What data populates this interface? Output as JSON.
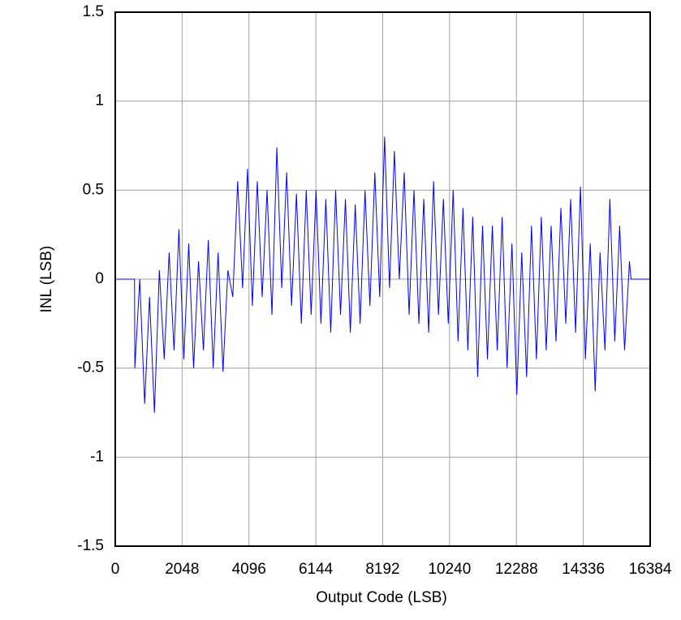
{
  "chart_data": {
    "type": "line",
    "xlabel": "Output Code (LSB)",
    "ylabel": "INL (LSB)",
    "xlim": [
      0,
      16384
    ],
    "xticks": [
      0,
      2048,
      4096,
      6144,
      8192,
      10240,
      12288,
      14336,
      16384
    ],
    "ylim": [
      -1.5,
      1.5
    ],
    "yticks": [
      -1.5,
      -1,
      -0.5,
      0,
      0.5,
      1,
      1.5
    ],
    "grid": true,
    "series": [
      {
        "color": "#0000ff",
        "x": [
          0,
          590,
          600,
          750,
          900,
          1050,
          1200,
          1350,
          1500,
          1650,
          1800,
          1950,
          2100,
          2250,
          2400,
          2550,
          2700,
          2850,
          3000,
          3150,
          3300,
          3450,
          3600,
          3750,
          3900,
          4050,
          4200,
          4350,
          4500,
          4650,
          4800,
          4950,
          5100,
          5250,
          5400,
          5550,
          5700,
          5850,
          6000,
          6150,
          6300,
          6450,
          6600,
          6750,
          6900,
          7050,
          7200,
          7350,
          7500,
          7650,
          7800,
          7950,
          8100,
          8250,
          8400,
          8550,
          8700,
          8850,
          9000,
          9150,
          9300,
          9450,
          9600,
          9750,
          9900,
          10050,
          10200,
          10350,
          10500,
          10650,
          10800,
          10950,
          11100,
          11250,
          11400,
          11550,
          11700,
          11850,
          12000,
          12150,
          12300,
          12450,
          12600,
          12750,
          12900,
          13050,
          13200,
          13350,
          13500,
          13650,
          13800,
          13950,
          14100,
          14250,
          14400,
          14550,
          14700,
          14850,
          15000,
          15150,
          15300,
          15450,
          15600,
          15750,
          15800,
          16384
        ],
        "values": [
          0,
          0,
          -0.5,
          0.0,
          -0.7,
          -0.1,
          -0.75,
          0.05,
          -0.45,
          0.15,
          -0.4,
          0.28,
          -0.45,
          0.2,
          -0.5,
          0.1,
          -0.4,
          0.22,
          -0.5,
          0.15,
          -0.52,
          0.05,
          -0.1,
          0.55,
          -0.05,
          0.62,
          -0.15,
          0.55,
          -0.1,
          0.5,
          -0.2,
          0.74,
          -0.05,
          0.6,
          -0.15,
          0.48,
          -0.25,
          0.5,
          -0.2,
          0.5,
          -0.25,
          0.45,
          -0.3,
          0.5,
          -0.2,
          0.45,
          -0.3,
          0.42,
          -0.25,
          0.5,
          -0.15,
          0.6,
          -0.1,
          0.8,
          -0.05,
          0.72,
          0.0,
          0.6,
          -0.2,
          0.5,
          -0.25,
          0.45,
          -0.3,
          0.55,
          -0.2,
          0.45,
          -0.25,
          0.5,
          -0.35,
          0.4,
          -0.4,
          0.35,
          -0.55,
          0.3,
          -0.45,
          0.3,
          -0.4,
          0.35,
          -0.5,
          0.2,
          -0.65,
          0.15,
          -0.55,
          0.3,
          -0.45,
          0.35,
          -0.4,
          0.3,
          -0.35,
          0.4,
          -0.25,
          0.45,
          -0.3,
          0.52,
          -0.45,
          0.2,
          -0.63,
          0.15,
          -0.4,
          0.45,
          -0.35,
          0.3,
          -0.4,
          0.1,
          0,
          0
        ]
      }
    ]
  }
}
